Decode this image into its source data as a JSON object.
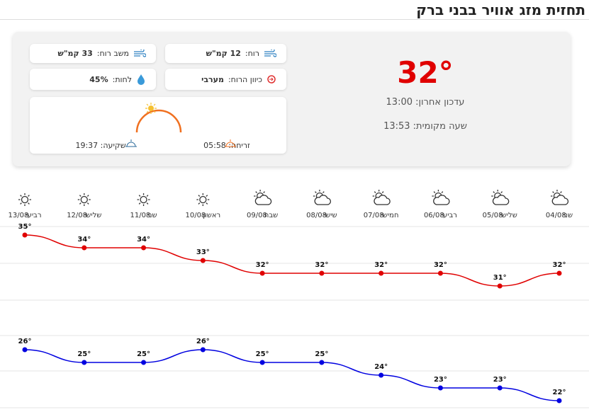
{
  "header": {
    "title": "תחזית מזג אוויר בבני ברק"
  },
  "current": {
    "temperature": "32°",
    "updated": "עדכון אחרון: 13:00",
    "local_time": "שעה מקומית: 13:53",
    "wind_label": "רוח:",
    "wind_value": "12 קמ\"ש",
    "gust_label": "משב רוח:",
    "gust_value": "33 קמ\"ש",
    "direction_label": "כיוון הרוח:",
    "direction_value": "מערבי",
    "humidity_label": "לחות:",
    "humidity_value": "45%",
    "sunrise": "זריחה: 05:58",
    "sunset": "שקיעה: 19:37"
  },
  "chart_data": {
    "type": "line",
    "categories": [
      "04/08",
      "05/08",
      "06/08",
      "07/08",
      "08/08",
      "09/08",
      "10/08",
      "11/08",
      "12/08",
      "13/08"
    ],
    "day_names": [
      "שני",
      "שלישי",
      "רביעי",
      "חמישי",
      "שישי",
      "שבת",
      "ראשון",
      "שני",
      "שלישי",
      "רביעי"
    ],
    "series": [
      {
        "color": "#e00000",
        "values": [
          32,
          31,
          32,
          32,
          32,
          32,
          33,
          34,
          34,
          35
        ],
        "value_labels": [
          "32°",
          "31°",
          "32°",
          "32°",
          "32°",
          "32°",
          "33°",
          "34°",
          "34°",
          "35°"
        ]
      },
      {
        "color": "#0000e0",
        "values": [
          22,
          23,
          23,
          24,
          25,
          25,
          26,
          25,
          25,
          26
        ],
        "value_labels": [
          "22°",
          "23°",
          "23°",
          "24°",
          "25°",
          "25°",
          "26°",
          "25°",
          "25°",
          "26°"
        ]
      }
    ]
  }
}
